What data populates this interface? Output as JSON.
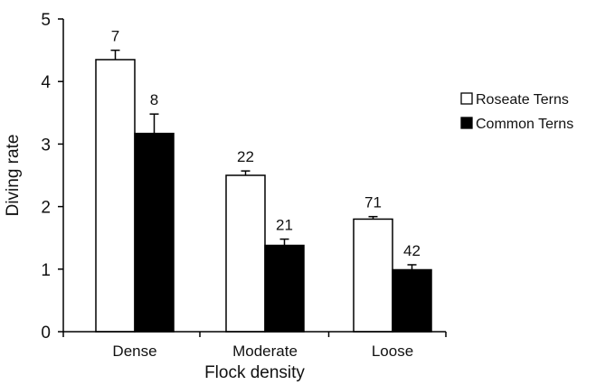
{
  "chart_data": {
    "type": "bar",
    "categories": [
      "Dense",
      "Moderate",
      "Loose"
    ],
    "series": [
      {
        "name": "Roseate Terns",
        "values": [
          4.35,
          2.5,
          1.8
        ],
        "errors": [
          0.15,
          0.07,
          0.04
        ],
        "n": [
          "7",
          "22",
          "71"
        ],
        "color": "#ffffff"
      },
      {
        "name": "Common Terns",
        "values": [
          3.17,
          1.38,
          0.99
        ],
        "errors": [
          0.31,
          0.1,
          0.08
        ],
        "n": [
          "8",
          "21",
          "42"
        ],
        "color": "#000000"
      }
    ],
    "xlabel": "Flock density",
    "ylabel": "Diving rate",
    "ylim": [
      0,
      5
    ],
    "yticks": [
      0,
      1,
      2,
      3,
      4,
      5
    ],
    "grid": false,
    "legend_position": "right"
  }
}
